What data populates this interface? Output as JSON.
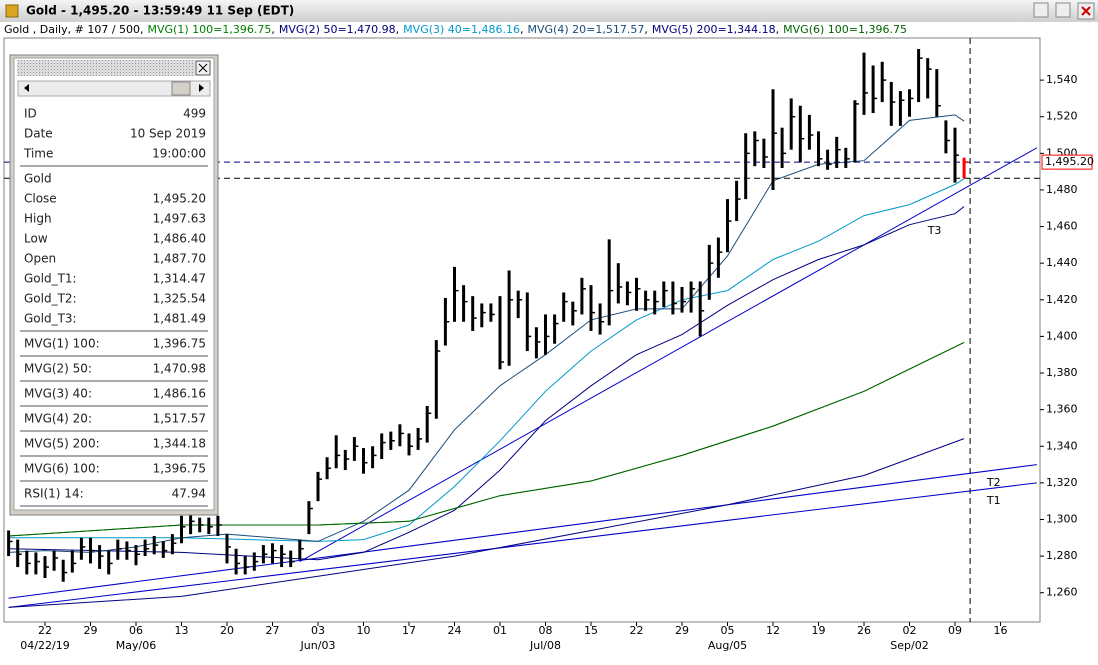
{
  "window": {
    "title": "Gold - 1,495.20 - 13:59:49  11 Sep (EDT)"
  },
  "chart_data": {
    "type": "ohlc",
    "subtitle": "Gold , Daily, # 107 / 500,",
    "legend_separator": ",",
    "ylim": [
      1244,
      1563
    ],
    "yticks": [
      {
        "value": 1260,
        "label": "1,260"
      },
      {
        "value": 1280,
        "label": "1,280"
      },
      {
        "value": 1300,
        "label": "1,300"
      },
      {
        "value": 1320,
        "label": "1,320"
      },
      {
        "value": 1340,
        "label": "1,340"
      },
      {
        "value": 1360,
        "label": "1,360"
      },
      {
        "value": 1380,
        "label": "1,380"
      },
      {
        "value": 1400,
        "label": "1,400"
      },
      {
        "value": 1420,
        "label": "1,420"
      },
      {
        "value": 1440,
        "label": "1,440"
      },
      {
        "value": 1460,
        "label": "1,460"
      },
      {
        "value": 1480,
        "label": "1,480"
      },
      {
        "value": 1500,
        "label": "1,500"
      },
      {
        "value": 1520,
        "label": "1,520"
      },
      {
        "value": 1540,
        "label": "1,540"
      }
    ],
    "last_price": {
      "value": 1495.2,
      "label": "1,495.20",
      "color": "#ff0000",
      "line_color": "#000080"
    },
    "categories": [
      null,
      null,
      null,
      null,
      "22",
      null,
      null,
      null,
      null,
      "29",
      null,
      null,
      null,
      null,
      "06",
      null,
      null,
      null,
      null,
      "13",
      null,
      null,
      null,
      null,
      "20",
      null,
      null,
      null,
      null,
      "27",
      null,
      null,
      null,
      null,
      "03",
      null,
      null,
      null,
      null,
      "10",
      null,
      null,
      null,
      null,
      "17",
      null,
      null,
      null,
      null,
      "24",
      null,
      null,
      null,
      null,
      "01",
      null,
      null,
      null,
      null,
      "08",
      null,
      null,
      null,
      null,
      "15",
      null,
      null,
      null,
      null,
      "22",
      null,
      null,
      null,
      null,
      "29",
      null,
      null,
      null,
      null,
      "05",
      null,
      null,
      null,
      null,
      "12",
      null,
      null,
      null,
      null,
      "19",
      null,
      null,
      null,
      null,
      "26",
      null,
      null,
      null,
      null,
      "02",
      null,
      null,
      null,
      null,
      "09",
      null,
      null,
      null,
      null,
      "16"
    ],
    "sublabels": [
      null,
      null,
      null,
      null,
      "04/22/19",
      null,
      null,
      null,
      null,
      null,
      null,
      null,
      null,
      null,
      "May/06",
      null,
      null,
      null,
      null,
      null,
      null,
      null,
      null,
      null,
      null,
      null,
      null,
      null,
      null,
      null,
      null,
      null,
      null,
      null,
      "Jun/03",
      null,
      null,
      null,
      null,
      null,
      null,
      null,
      null,
      null,
      null,
      null,
      null,
      null,
      null,
      null,
      null,
      null,
      null,
      null,
      null,
      null,
      null,
      null,
      null,
      "Jul/08",
      null,
      null,
      null,
      null,
      null,
      null,
      null,
      null,
      null,
      null,
      null,
      null,
      null,
      null,
      null,
      null,
      null,
      null,
      null,
      "Aug/05",
      null,
      null,
      null,
      null,
      null,
      null,
      null,
      null,
      null,
      null,
      null,
      null,
      null,
      null,
      null,
      null,
      null,
      null,
      null,
      "Sep/02",
      null,
      null,
      null,
      null,
      null,
      null,
      null,
      null,
      null,
      null
    ],
    "series": [
      {
        "name": "Gold",
        "color": "#000000",
        "last_bar_color": "#ff0000",
        "high": [
          1294,
          1289,
          1283,
          1282,
          1280,
          1283,
          1278,
          1283,
          1290,
          1290,
          1286,
          1283,
          1289,
          1288,
          1286,
          1289,
          1291,
          1288,
          1292,
          1302,
          1304,
          1301,
          1301,
          1302,
          1292,
          1284,
          1280,
          1282,
          1286,
          1287,
          1286,
          1283,
          1289,
          1310,
          1326,
          1334,
          1346,
          1338,
          1345,
          1339,
          1340,
          1347,
          1348,
          1352,
          1347,
          1350,
          1362,
          1398,
          1421,
          1438,
          1428,
          1422,
          1418,
          1418,
          1422,
          1436,
          1425,
          1424,
          1405,
          1412,
          1412,
          1424,
          1419,
          1432,
          1428,
          1418,
          1453,
          1440,
          1430,
          1432,
          1425,
          1425,
          1430,
          1430,
          1427,
          1430,
          1430,
          1450,
          1454,
          1475,
          1485,
          1511,
          1512,
          1508,
          1535,
          1514,
          1530,
          1526,
          1521,
          1512,
          1502,
          1509,
          1503,
          1529,
          1555,
          1548,
          1550,
          1539,
          1534,
          1535,
          1557,
          1552,
          1546,
          1518,
          1514,
          1497.63,
          null,
          null,
          null,
          null
        ],
        "low": [
          1280,
          1274,
          1270,
          1270,
          1268,
          1272,
          1266,
          1271,
          1278,
          1276,
          1273,
          1270,
          1278,
          1278,
          1275,
          1280,
          1281,
          1279,
          1281,
          1287,
          1292,
          1293,
          1292,
          1291,
          1276,
          1270,
          1270,
          1272,
          1276,
          1276,
          1274,
          1274,
          1278,
          1292,
          1310,
          1322,
          1328,
          1327,
          1332,
          1325,
          1328,
          1333,
          1338,
          1340,
          1335,
          1338,
          1342,
          1355,
          1395,
          1408,
          1408,
          1403,
          1405,
          1408,
          1382,
          1384,
          1410,
          1392,
          1388,
          1390,
          1396,
          1408,
          1406,
          1412,
          1403,
          1401,
          1406,
          1418,
          1417,
          1414,
          1414,
          1412,
          1416,
          1412,
          1413,
          1413,
          1400,
          1420,
          1432,
          1446,
          1463,
          1475,
          1493,
          1492,
          1480,
          1492,
          1502,
          1495,
          1502,
          1493,
          1491,
          1492,
          1492,
          1495,
          1521,
          1522,
          1528,
          1515,
          1515,
          1520,
          1528,
          1530,
          1520,
          1500,
          1484,
          1486.4,
          null,
          null,
          null,
          null
        ],
        "close": [
          1288,
          1281,
          1276,
          1277,
          1274,
          1279,
          1271,
          1276,
          1285,
          1283,
          1280,
          1276,
          1284,
          1283,
          1281,
          1284,
          1286,
          1283,
          1287,
          1296,
          1299,
          1297,
          1296,
          1297,
          1285,
          1276,
          1274,
          1277,
          1281,
          1283,
          1281,
          1277,
          1284,
          1306,
          1322,
          1328,
          1335,
          1333,
          1340,
          1331,
          1335,
          1342,
          1343,
          1347,
          1340,
          1344,
          1358,
          1392,
          1408,
          1425,
          1419,
          1410,
          1413,
          1412,
          1386,
          1420,
          1420,
          1400,
          1397,
          1400,
          1407,
          1419,
          1414,
          1426,
          1413,
          1408,
          1425,
          1427,
          1424,
          1426,
          1420,
          1419,
          1425,
          1418,
          1419,
          1426,
          1414,
          1440,
          1446,
          1463,
          1475,
          1500,
          1507,
          1498,
          1511,
          1500,
          1520,
          1508,
          1510,
          1497,
          1494,
          1502,
          1497,
          1527,
          1533,
          1530,
          1540,
          1528,
          1529,
          1530,
          1552,
          1546,
          1526,
          1507,
          1499,
          1495.2,
          null,
          null,
          null,
          null
        ]
      }
    ],
    "overlays": [
      {
        "name": "MVG(1) 100=1,396.75",
        "color": "#008000",
        "x": [
          0,
          19,
          34,
          44,
          54,
          64,
          74,
          84,
          94,
          105
        ],
        "values": [
          1291,
          1297,
          1297,
          1299,
          1313,
          1321,
          1335,
          1351,
          1370,
          1396.75
        ]
      },
      {
        "name": "MVG(2) 50=1,470.98",
        "color": "#000080",
        "x": [
          0,
          19,
          34,
          39,
          44,
          49,
          54,
          59,
          64,
          69,
          74,
          79,
          84,
          89,
          94,
          99,
          104,
          105
        ],
        "values": [
          1284,
          1282,
          1278,
          1282,
          1293,
          1305,
          1327,
          1354,
          1373,
          1390,
          1401,
          1417,
          1431,
          1442,
          1450,
          1461,
          1467,
          1470.98
        ]
      },
      {
        "name": "MVG(3) 40=1,486.16",
        "color": "#0099cc",
        "x": [
          0,
          19,
          34,
          39,
          44,
          49,
          54,
          59,
          64,
          69,
          74,
          79,
          84,
          89,
          94,
          99,
          104,
          105
        ],
        "values": [
          1290,
          1290,
          1288,
          1289,
          1297,
          1318,
          1343,
          1370,
          1392,
          1409,
          1420,
          1425,
          1442,
          1452,
          1466,
          1472,
          1483,
          1486.16
        ]
      },
      {
        "name": "MVG(4) 20=1,517.57",
        "color": "#1a4c7a",
        "x": [
          0,
          4,
          9,
          14,
          19,
          24,
          29,
          34,
          39,
          44,
          49,
          54,
          59,
          64,
          69,
          74,
          79,
          84,
          89,
          94,
          99,
          104,
          105
        ],
        "values": [
          1282,
          1283,
          1282,
          1285,
          1290,
          1292,
          1290,
          1288,
          1299,
          1316,
          1349,
          1373,
          1390,
          1409,
          1415,
          1415,
          1444,
          1485,
          1494,
          1496,
          1518,
          1521,
          1517.57
        ]
      },
      {
        "name": "MVG(5) 200=1,344.18",
        "color": "#000080",
        "x": [
          0,
          19,
          34,
          49,
          64,
          79,
          94,
          105
        ],
        "values": [
          1252,
          1258,
          1269,
          1280,
          1294,
          1308,
          1324,
          1344.18
        ]
      },
      {
        "name": "MVG(6) 100=1,396.75",
        "color": "#006400",
        "x": [
          0,
          19,
          34,
          44,
          54,
          64,
          74,
          84,
          94,
          105
        ],
        "values": [
          1291,
          1297,
          1297,
          1299,
          1313,
          1321,
          1335,
          1351,
          1370,
          1396.75
        ]
      }
    ],
    "trendlines": [
      {
        "name": "T1",
        "color": "#0000cc",
        "x": [
          0,
          113
        ],
        "values": [
          1252,
          1320
        ]
      },
      {
        "name": "T2",
        "color": "#0000cc",
        "x": [
          0,
          113
        ],
        "values": [
          1257,
          1330
        ]
      },
      {
        "name": "T3",
        "color": "#0000cc",
        "x": [
          32,
          113
        ],
        "values": [
          1277,
          1503
        ]
      }
    ]
  },
  "info_panel": {
    "groups": [
      {
        "rows": [
          {
            "label": "ID",
            "value": "499"
          },
          {
            "label": "Date",
            "value": "10 Sep 2019"
          },
          {
            "label": "Time",
            "value": "19:00:00"
          }
        ]
      },
      {
        "header": "Gold",
        "rows": [
          {
            "label": "Close",
            "value": "1,495.20"
          },
          {
            "label": "High",
            "value": "1,497.63"
          },
          {
            "label": "Low",
            "value": "1,486.40"
          },
          {
            "label": "Open",
            "value": "1,487.70"
          },
          {
            "label": "Gold_T1:",
            "value": "1,314.47"
          },
          {
            "label": "Gold_T2:",
            "value": "1,325.54"
          },
          {
            "label": "Gold_T3:",
            "value": "1,481.49"
          }
        ]
      },
      {
        "rows": [
          {
            "label": "MVG(1) 100:",
            "value": "1,396.75"
          }
        ]
      },
      {
        "rows": [
          {
            "label": "MVG(2) 50:",
            "value": "1,470.98"
          }
        ]
      },
      {
        "rows": [
          {
            "label": "MVG(3) 40:",
            "value": "1,486.16"
          }
        ]
      },
      {
        "rows": [
          {
            "label": "MVG(4) 20:",
            "value": "1,517.57"
          }
        ]
      },
      {
        "rows": [
          {
            "label": "MVG(5) 200:",
            "value": "1,344.18"
          }
        ]
      },
      {
        "rows": [
          {
            "label": "MVG(6) 100:",
            "value": "1,396.75"
          }
        ]
      },
      {
        "rows": [
          {
            "label": "RSI(1) 14:",
            "value": "47.94"
          }
        ]
      }
    ]
  }
}
